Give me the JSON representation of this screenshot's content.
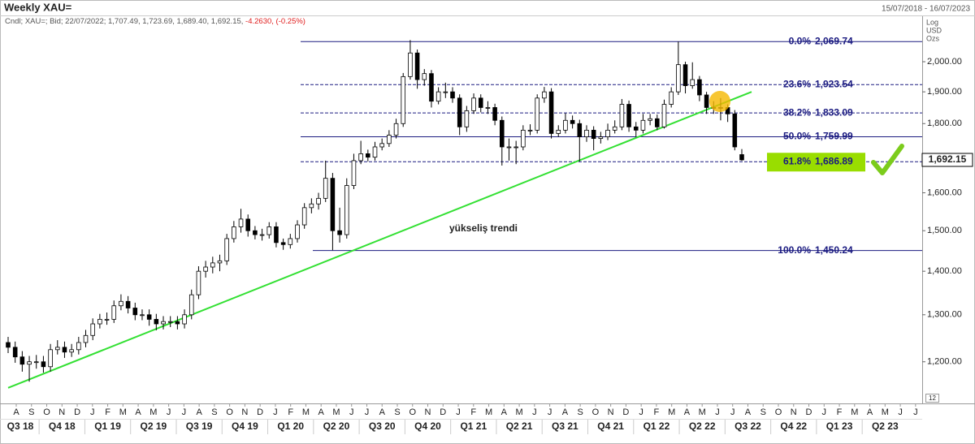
{
  "chart_data": {
    "type": "candlestick",
    "title": "Weekly XAU=",
    "date_range": "15/07/2018 - 16/07/2023",
    "subtitle": "Cndl; XAU=; Bid; 22/07/2022; 1,707.49, 1,723.69, 1,689.40, 1,692.15,",
    "subtitle_change": "-4.2630, (-0.25%)",
    "axis_notes": [
      "Log",
      "USD",
      "Ozs"
    ],
    "corner_label": "12",
    "log_scale": true,
    "ylim": [
      1121,
      2167
    ],
    "yticks": [
      {
        "value": 1200,
        "label": "1,200.00"
      },
      {
        "value": 1300,
        "label": "1,300.00"
      },
      {
        "value": 1400,
        "label": "1,400.00"
      },
      {
        "value": 1500,
        "label": "1,500.00"
      },
      {
        "value": 1600,
        "label": "1,600.00"
      },
      {
        "value": 1700,
        "label": "1,700.00"
      },
      {
        "value": 1800,
        "label": "1,800.00"
      },
      {
        "value": 1900,
        "label": "1,900.00"
      },
      {
        "value": 2000,
        "label": "2,000.00"
      }
    ],
    "month_labels": [
      "A",
      "S",
      "O",
      "N",
      "D",
      "J",
      "F",
      "M",
      "A",
      "M",
      "J",
      "J",
      "A",
      "S",
      "O",
      "N",
      "D",
      "J",
      "F",
      "M",
      "A",
      "M",
      "J",
      "J",
      "A",
      "S",
      "O",
      "N",
      "D",
      "J",
      "F",
      "M",
      "A",
      "M",
      "J",
      "J",
      "A",
      "S",
      "O",
      "N",
      "D",
      "J",
      "F",
      "M",
      "A",
      "M",
      "J",
      "J",
      "A",
      "S",
      "O",
      "N",
      "D",
      "J",
      "F",
      "M",
      "A",
      "M",
      "J",
      "J"
    ],
    "quarter_labels": [
      "Q3 18",
      "Q4 18",
      "Q1 19",
      "Q2 19",
      "Q3 19",
      "Q4 19",
      "Q1 20",
      "Q2 20",
      "Q3 20",
      "Q4 20",
      "Q1 21",
      "Q2 21",
      "Q3 21",
      "Q4 21",
      "Q1 22",
      "Q2 22",
      "Q3 22",
      "Q4 22",
      "Q1 23",
      "Q2 23"
    ],
    "up_color": "#ffffff",
    "down_color": "#000000",
    "open": [
      1240,
      1230,
      1210,
      1195,
      1200,
      1200,
      1190,
      1225,
      1230,
      1220,
      1225,
      1240,
      1255,
      1280,
      1290,
      1290,
      1320,
      1330,
      1315,
      1300,
      1300,
      1290,
      1280,
      1285,
      1285,
      1280,
      1300,
      1345,
      1400,
      1410,
      1420,
      1425,
      1480,
      1510,
      1530,
      1500,
      1490,
      1490,
      1510,
      1470,
      1465,
      1480,
      1515,
      1560,
      1570,
      1585,
      1640,
      1500,
      1490,
      1620,
      1690,
      1710,
      1700,
      1730,
      1740,
      1765,
      1800,
      1950,
      2030,
      1940,
      1960,
      1870,
      1900,
      1900,
      1880,
      1790,
      1840,
      1880,
      1850,
      1850,
      1810,
      1730,
      1730,
      1730,
      1780,
      1780,
      1880,
      1900,
      1770,
      1780,
      1810,
      1800,
      1760,
      1780,
      1755,
      1760,
      1780,
      1790,
      1860,
      1790,
      1780,
      1810,
      1815,
      1790,
      1860,
      1900,
      1990,
      1920,
      1940,
      1890,
      1850,
      1850,
      1850,
      1830,
      1707.49
    ],
    "high": [
      1252,
      1242,
      1222,
      1212,
      1214,
      1212,
      1237,
      1245,
      1242,
      1237,
      1252,
      1267,
      1292,
      1302,
      1305,
      1332,
      1346,
      1342,
      1327,
      1312,
      1312,
      1302,
      1297,
      1297,
      1297,
      1312,
      1357,
      1412,
      1425,
      1435,
      1440,
      1492,
      1525,
      1557,
      1542,
      1512,
      1505,
      1522,
      1522,
      1480,
      1492,
      1527,
      1572,
      1585,
      1600,
      1690,
      1655,
      1560,
      1640,
      1710,
      1748,
      1722,
      1745,
      1755,
      1780,
      1815,
      1962,
      2075,
      2042,
      1975,
      1972,
      1915,
      1930,
      1915,
      1892,
      1855,
      1895,
      1892,
      1870,
      1862,
      1822,
      1755,
      1748,
      1795,
      1798,
      1892,
      1916,
      1912,
      1795,
      1832,
      1825,
      1812,
      1795,
      1792,
      1775,
      1800,
      1810,
      1877,
      1872,
      1805,
      1830,
      1830,
      1828,
      1875,
      1915,
      2070,
      2000,
      1998,
      1952,
      1900,
      1870,
      1880,
      1860,
      1842,
      1723.69
    ],
    "low": [
      1218,
      1198,
      1180,
      1160,
      1186,
      1178,
      1180,
      1215,
      1208,
      1210,
      1215,
      1230,
      1245,
      1270,
      1278,
      1282,
      1310,
      1303,
      1288,
      1288,
      1276,
      1266,
      1268,
      1273,
      1268,
      1270,
      1290,
      1335,
      1385,
      1395,
      1400,
      1415,
      1470,
      1495,
      1485,
      1478,
      1475,
      1480,
      1458,
      1452,
      1455,
      1470,
      1505,
      1545,
      1555,
      1575,
      1451,
      1470,
      1480,
      1610,
      1680,
      1688,
      1690,
      1720,
      1730,
      1755,
      1790,
      1940,
      1910,
      1920,
      1850,
      1860,
      1880,
      1865,
      1765,
      1775,
      1830,
      1835,
      1830,
      1795,
      1676,
      1690,
      1680,
      1720,
      1765,
      1770,
      1865,
      1755,
      1760,
      1770,
      1785,
      1688,
      1745,
      1720,
      1740,
      1750,
      1770,
      1780,
      1775,
      1760,
      1770,
      1795,
      1780,
      1785,
      1850,
      1890,
      1895,
      1910,
      1870,
      1830,
      1830,
      1810,
      1805,
      1720,
      1689.4
    ],
    "close": [
      1230,
      1210,
      1195,
      1200,
      1200,
      1190,
      1225,
      1230,
      1220,
      1225,
      1240,
      1255,
      1280,
      1290,
      1290,
      1320,
      1330,
      1315,
      1300,
      1300,
      1290,
      1280,
      1285,
      1285,
      1280,
      1300,
      1345,
      1400,
      1410,
      1420,
      1425,
      1480,
      1510,
      1530,
      1500,
      1490,
      1490,
      1510,
      1470,
      1465,
      1480,
      1515,
      1560,
      1570,
      1585,
      1640,
      1500,
      1490,
      1620,
      1690,
      1710,
      1700,
      1730,
      1740,
      1765,
      1800,
      1950,
      2030,
      1940,
      1960,
      1870,
      1900,
      1900,
      1880,
      1790,
      1840,
      1880,
      1850,
      1850,
      1810,
      1730,
      1730,
      1730,
      1780,
      1780,
      1880,
      1900,
      1770,
      1780,
      1810,
      1800,
      1760,
      1780,
      1755,
      1760,
      1780,
      1790,
      1860,
      1790,
      1780,
      1810,
      1815,
      1790,
      1860,
      1900,
      1990,
      1920,
      1940,
      1890,
      1850,
      1850,
      1850,
      1830,
      1730,
      1692.15
    ],
    "last_price": {
      "value": 1692.15,
      "label": "1,692.15"
    },
    "level_color": "#1a1a80",
    "levels": [
      {
        "name": "0.0%",
        "price": {
          "value": 2069.74,
          "label": "2,069.74"
        },
        "dashed": false,
        "highlight": false
      },
      {
        "name": "23.6%",
        "price": {
          "value": 1923.54,
          "label": "1,923.54"
        },
        "dashed": true,
        "highlight": false
      },
      {
        "name": "38.2%",
        "price": {
          "value": 1833.09,
          "label": "1,833.09"
        },
        "dashed": true,
        "highlight": false
      },
      {
        "name": "50.0%",
        "price": {
          "value": 1759.99,
          "label": "1,759.99"
        },
        "dashed": false,
        "highlight": false
      },
      {
        "name": "61.8%",
        "price": {
          "value": 1686.89,
          "label": "1,686.89"
        },
        "dashed": true,
        "highlight": true
      },
      {
        "name": "100.0%",
        "price": {
          "value": 1450.24,
          "label": "1,450.24"
        },
        "dashed": false,
        "highlight": false
      }
    ],
    "trendline": {
      "label": "yükseliş trendi",
      "color": "#33e033",
      "values": [
        1148,
        1900
      ]
    }
  }
}
